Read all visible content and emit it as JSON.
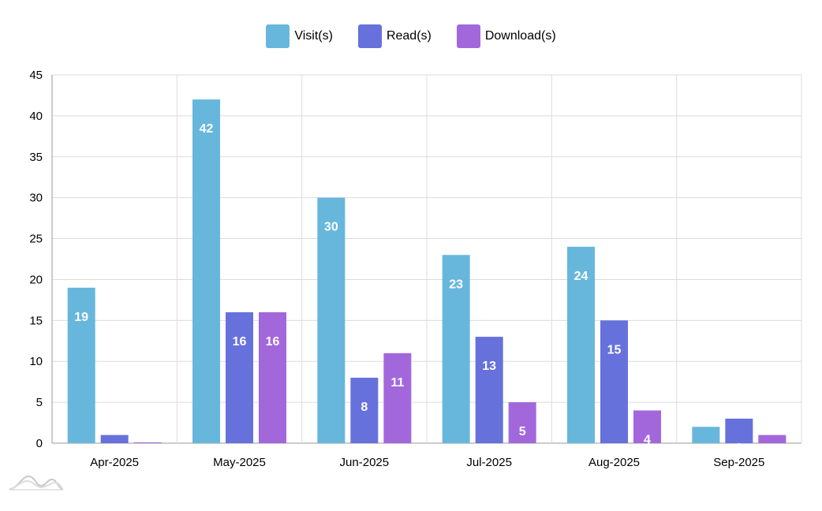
{
  "chart_data": {
    "type": "bar",
    "categories": [
      "Apr-2025",
      "May-2025",
      "Jun-2025",
      "Jul-2025",
      "Aug-2025",
      "Sep-2025"
    ],
    "series": [
      {
        "name": "Visit(s)",
        "color": "#67b7dc",
        "values": [
          19,
          42,
          30,
          23,
          24,
          2
        ]
      },
      {
        "name": "Read(s)",
        "color": "#6771dc",
        "values": [
          1,
          16,
          8,
          13,
          15,
          3
        ]
      },
      {
        "name": "Download(s)",
        "color": "#a367dc",
        "values": [
          0,
          16,
          11,
          5,
          4,
          1
        ]
      }
    ],
    "ylim": [
      0,
      45
    ],
    "yticks": [
      0,
      5,
      10,
      15,
      20,
      25,
      30,
      35,
      40,
      45
    ],
    "grid": true,
    "legend_position": "top-center",
    "data_labels": true
  },
  "logo": {
    "icon": "amcharts-logo-icon"
  }
}
